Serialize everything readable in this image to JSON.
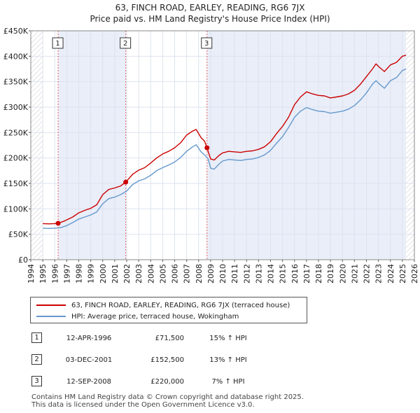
{
  "chart_data": {
    "type": "line",
    "title": "63, FINCH ROAD, EARLEY, READING, RG6 7JX",
    "subtitle": "Price paid vs. HM Land Registry's House Price Index (HPI)",
    "xlabel": "",
    "ylabel": "",
    "xlim": [
      1994,
      2026
    ],
    "ylim": [
      0,
      450000
    ],
    "y_ticks": [
      0,
      50000,
      100000,
      150000,
      200000,
      250000,
      300000,
      350000,
      400000,
      450000
    ],
    "y_tick_labels": [
      "£0",
      "£50K",
      "£100K",
      "£150K",
      "£200K",
      "£250K",
      "£300K",
      "£350K",
      "£400K",
      "£450K"
    ],
    "x_ticks": [
      1994,
      1995,
      1996,
      1997,
      1998,
      1999,
      2000,
      2001,
      2002,
      2003,
      2004,
      2005,
      2006,
      2007,
      2008,
      2009,
      2010,
      2011,
      2012,
      2013,
      2014,
      2015,
      2016,
      2017,
      2018,
      2019,
      2020,
      2021,
      2022,
      2023,
      2024,
      2025,
      2026
    ],
    "x_tick_labels": [
      "1994",
      "1995",
      "1996",
      "1997",
      "1998",
      "1999",
      "2000",
      "2001",
      "2002",
      "2003",
      "2004",
      "2005",
      "2006",
      "2007",
      "2008",
      "2009",
      "2010",
      "2011",
      "2012",
      "2013",
      "2014",
      "2015",
      "2016",
      "2017",
      "2018",
      "2019",
      "2020",
      "2021",
      "2022",
      "2023",
      "2024",
      "2025",
      "2026"
    ],
    "shaded_ranges": [
      [
        1996.28,
        2001.92
      ],
      [
        2008.7,
        2025.3
      ]
    ],
    "hatched_ranges": [
      [
        1994,
        1995.0
      ],
      [
        2025.3,
        2026
      ]
    ],
    "series": [
      {
        "name": "63, FINCH ROAD, EARLEY, READING, RG6 7JX (terraced house)",
        "color": "#cc0000",
        "x": [
          1995.0,
          1995.5,
          1996.0,
          1996.28,
          1996.8,
          1997.5,
          1998.0,
          1998.5,
          1999.0,
          1999.5,
          2000.0,
          2000.5,
          2001.0,
          2001.5,
          2001.92,
          2002.5,
          2003.0,
          2003.5,
          2004.0,
          2004.5,
          2005.0,
          2005.5,
          2006.0,
          2006.5,
          2007.0,
          2007.5,
          2007.8,
          2008.2,
          2008.5,
          2008.7,
          2009.0,
          2009.3,
          2009.7,
          2010.0,
          2010.5,
          2011.0,
          2011.5,
          2012.0,
          2012.5,
          2013.0,
          2013.5,
          2014.0,
          2014.5,
          2015.0,
          2015.5,
          2016.0,
          2016.5,
          2017.0,
          2017.5,
          2018.0,
          2018.5,
          2019.0,
          2019.5,
          2020.0,
          2020.5,
          2021.0,
          2021.5,
          2022.0,
          2022.5,
          2022.8,
          2023.0,
          2023.5,
          2024.0,
          2024.5,
          2025.0,
          2025.3
        ],
        "y": [
          71000,
          70500,
          71000,
          71500,
          76000,
          84000,
          92000,
          97000,
          101000,
          108000,
          128000,
          138000,
          141000,
          145000,
          152500,
          168000,
          176000,
          181000,
          190000,
          200000,
          208000,
          213000,
          220000,
          230000,
          245000,
          253000,
          256000,
          240000,
          233000,
          220000,
          198000,
          196000,
          205000,
          210000,
          213000,
          212000,
          211000,
          213000,
          214000,
          217000,
          222000,
          232000,
          248000,
          262000,
          280000,
          305000,
          320000,
          330000,
          326000,
          323000,
          322000,
          318000,
          320000,
          322000,
          326000,
          333000,
          345000,
          360000,
          375000,
          385000,
          380000,
          370000,
          383000,
          388000,
          400000,
          402000
        ]
      },
      {
        "name": "HPI: Average price, terraced house, Wokingham",
        "color": "#6699cc",
        "x": [
          1995.0,
          1995.5,
          1996.0,
          1996.5,
          1997.0,
          1997.5,
          1998.0,
          1998.5,
          1999.0,
          1999.5,
          2000.0,
          2000.5,
          2001.0,
          2001.5,
          2002.0,
          2002.5,
          2003.0,
          2003.5,
          2004.0,
          2004.5,
          2005.0,
          2005.5,
          2006.0,
          2006.5,
          2007.0,
          2007.5,
          2007.8,
          2008.2,
          2008.5,
          2008.8,
          2009.0,
          2009.3,
          2009.7,
          2010.0,
          2010.5,
          2011.0,
          2011.5,
          2012.0,
          2012.5,
          2013.0,
          2013.5,
          2014.0,
          2014.5,
          2015.0,
          2015.5,
          2016.0,
          2016.5,
          2017.0,
          2017.5,
          2018.0,
          2018.5,
          2019.0,
          2019.5,
          2020.0,
          2020.5,
          2021.0,
          2021.5,
          2022.0,
          2022.5,
          2022.8,
          2023.0,
          2023.5,
          2024.0,
          2024.5,
          2025.0,
          2025.3
        ],
        "y": [
          62000,
          61500,
          61800,
          63000,
          67000,
          73000,
          80000,
          84000,
          88000,
          94000,
          110000,
          120000,
          123000,
          128000,
          135000,
          148000,
          155000,
          159000,
          166000,
          175000,
          181000,
          186000,
          192000,
          201000,
          213000,
          222000,
          226000,
          212000,
          206000,
          198000,
          180000,
          178000,
          188000,
          194000,
          197000,
          196000,
          195000,
          197000,
          198000,
          201000,
          206000,
          215000,
          229000,
          242000,
          260000,
          280000,
          292000,
          299000,
          295000,
          292000,
          291000,
          288000,
          290000,
          292000,
          296000,
          303000,
          314000,
          328000,
          345000,
          352000,
          347000,
          337000,
          352000,
          358000,
          372000,
          375000
        ]
      }
    ],
    "transactions_markers": [
      {
        "label": "1",
        "x": 1996.28,
        "y": 71500
      },
      {
        "label": "2",
        "x": 2001.92,
        "y": 152500
      },
      {
        "label": "3",
        "x": 2008.7,
        "y": 220000
      }
    ]
  },
  "legend": {
    "items": [
      {
        "label": "63, FINCH ROAD, EARLEY, READING, RG6 7JX (terraced house)",
        "color": "#cc0000"
      },
      {
        "label": "HPI: Average price, terraced house, Wokingham",
        "color": "#6699cc"
      }
    ]
  },
  "transactions": [
    {
      "num": "1",
      "date": "12-APR-1996",
      "price": "£71,500",
      "hpi": "15% ↑ HPI"
    },
    {
      "num": "2",
      "date": "03-DEC-2001",
      "price": "£152,500",
      "hpi": "13% ↑ HPI"
    },
    {
      "num": "3",
      "date": "12-SEP-2008",
      "price": "£220,000",
      "hpi": "7% ↑ HPI"
    }
  ],
  "footer": {
    "line1": "Contains HM Land Registry data © Crown copyright and database right 2025.",
    "line2": "This data is licensed under the Open Government Licence v3.0."
  }
}
